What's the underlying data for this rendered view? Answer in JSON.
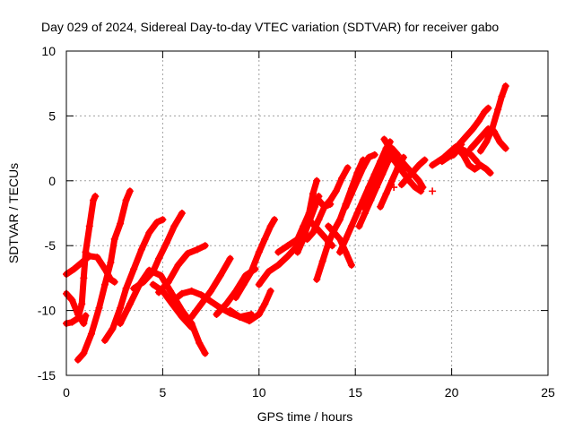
{
  "chart_data": {
    "type": "scatter",
    "title": "Day 029 of 2024, Sidereal Day-to-day VTEC variation (SDTVAR) for receiver gabo",
    "xlabel": "GPS time / hours",
    "ylabel": "SDTVAR / TECUs",
    "xlim": [
      0,
      25
    ],
    "ylim": [
      -15,
      10
    ],
    "x_ticks": [
      0,
      5,
      10,
      15,
      20,
      25
    ],
    "y_ticks": [
      -15,
      -10,
      -5,
      0,
      5,
      10
    ],
    "grid": true,
    "marker": "+",
    "color": "#ff0000",
    "legend": "none",
    "series": [
      {
        "points": [
          [
            0.0,
            -8.7
          ],
          [
            0.3,
            -9.2
          ],
          [
            0.6,
            -10.3
          ],
          [
            0.9,
            -11.0
          ],
          [
            1.0,
            -10.4
          ]
        ]
      },
      {
        "points": [
          [
            0.0,
            -7.2
          ],
          [
            0.4,
            -6.8
          ],
          [
            0.8,
            -6.3
          ],
          [
            1.2,
            -5.8
          ],
          [
            1.6,
            -5.9
          ],
          [
            2.0,
            -6.8
          ],
          [
            2.3,
            -7.6
          ],
          [
            2.5,
            -7.8
          ]
        ]
      },
      {
        "points": [
          [
            0.0,
            -11.0
          ],
          [
            0.3,
            -10.9
          ],
          [
            0.6,
            -10.6
          ],
          [
            0.8,
            -9.5
          ],
          [
            0.9,
            -7.5
          ],
          [
            1.0,
            -5.5
          ],
          [
            1.2,
            -3.5
          ],
          [
            1.4,
            -1.5
          ],
          [
            1.5,
            -1.2
          ]
        ]
      },
      {
        "points": [
          [
            0.6,
            -13.8
          ],
          [
            0.9,
            -13.3
          ],
          [
            1.3,
            -11.8
          ],
          [
            1.7,
            -9.8
          ],
          [
            2.0,
            -8.0
          ],
          [
            2.3,
            -6.3
          ],
          [
            2.5,
            -4.5
          ],
          [
            2.8,
            -3.3
          ],
          [
            3.1,
            -1.5
          ],
          [
            3.3,
            -0.8
          ]
        ]
      },
      {
        "points": [
          [
            2.0,
            -12.3
          ],
          [
            2.4,
            -11.4
          ],
          [
            2.8,
            -9.8
          ],
          [
            3.1,
            -8.3
          ],
          [
            3.5,
            -6.8
          ],
          [
            3.9,
            -5.3
          ],
          [
            4.3,
            -4.0
          ],
          [
            4.7,
            -3.2
          ],
          [
            5.0,
            -3.0
          ]
        ]
      },
      {
        "points": [
          [
            2.8,
            -11.0
          ],
          [
            3.3,
            -9.5
          ],
          [
            3.8,
            -8.0
          ],
          [
            4.3,
            -6.9
          ],
          [
            4.9,
            -7.3
          ],
          [
            5.4,
            -8.5
          ],
          [
            6.0,
            -10.0
          ],
          [
            6.5,
            -11.0
          ],
          [
            6.9,
            -12.5
          ],
          [
            7.2,
            -13.3
          ]
        ]
      },
      {
        "points": [
          [
            3.5,
            -8.3
          ],
          [
            4.0,
            -7.8
          ],
          [
            4.5,
            -7.0
          ],
          [
            4.8,
            -6.0
          ],
          [
            5.2,
            -4.8
          ],
          [
            5.6,
            -3.5
          ],
          [
            6.0,
            -2.5
          ]
        ]
      },
      {
        "points": [
          [
            4.5,
            -8.0
          ],
          [
            5.0,
            -8.5
          ],
          [
            5.5,
            -9.5
          ],
          [
            6.0,
            -10.5
          ],
          [
            6.5,
            -11.3
          ]
        ]
      },
      {
        "points": [
          [
            4.8,
            -8.6
          ],
          [
            5.3,
            -7.8
          ],
          [
            5.8,
            -6.5
          ],
          [
            6.3,
            -5.6
          ],
          [
            6.8,
            -5.3
          ],
          [
            7.2,
            -5.0
          ]
        ]
      },
      {
        "points": [
          [
            5.5,
            -9.3
          ],
          [
            6.0,
            -8.7
          ],
          [
            6.5,
            -8.5
          ],
          [
            7.0,
            -8.8
          ],
          [
            7.5,
            -9.3
          ],
          [
            8.0,
            -9.8
          ],
          [
            8.5,
            -10.2
          ],
          [
            9.0,
            -10.5
          ],
          [
            9.6,
            -10.3
          ]
        ]
      },
      {
        "points": [
          [
            6.5,
            -10.5
          ],
          [
            7.0,
            -9.5
          ],
          [
            7.5,
            -8.5
          ],
          [
            8.0,
            -7.3
          ],
          [
            8.5,
            -6.0
          ]
        ]
      },
      {
        "points": [
          [
            7.8,
            -10.3
          ],
          [
            8.3,
            -9.5
          ],
          [
            8.8,
            -8.5
          ],
          [
            9.3,
            -7.3
          ],
          [
            9.8,
            -6.8
          ]
        ]
      },
      {
        "points": [
          [
            8.5,
            -10.0
          ],
          [
            9.0,
            -10.5
          ],
          [
            9.5,
            -10.8
          ],
          [
            10.0,
            -10.3
          ],
          [
            10.3,
            -9.5
          ],
          [
            10.6,
            -8.5
          ]
        ]
      },
      {
        "points": [
          [
            8.8,
            -9.0
          ],
          [
            9.2,
            -8.0
          ],
          [
            9.6,
            -7.0
          ],
          [
            10.0,
            -5.5
          ],
          [
            10.3,
            -4.5
          ],
          [
            10.6,
            -3.5
          ],
          [
            10.8,
            -3.0
          ]
        ]
      },
      {
        "points": [
          [
            10.0,
            -8.0
          ],
          [
            10.5,
            -7.0
          ],
          [
            11.0,
            -6.5
          ],
          [
            11.5,
            -5.8
          ],
          [
            12.0,
            -5.0
          ],
          [
            12.3,
            -4.3
          ],
          [
            12.6,
            -3.2
          ],
          [
            12.9,
            -2.0
          ],
          [
            13.1,
            -1.2
          ]
        ]
      },
      {
        "points": [
          [
            11.0,
            -5.5
          ],
          [
            11.5,
            -5.0
          ],
          [
            12.0,
            -4.5
          ],
          [
            12.3,
            -3.5
          ],
          [
            12.6,
            -2.5
          ],
          [
            12.8,
            -1.0
          ],
          [
            13.0,
            0.0
          ]
        ]
      },
      {
        "points": [
          [
            12.0,
            -5.5
          ],
          [
            12.3,
            -4.5
          ],
          [
            12.6,
            -3.0
          ],
          [
            12.8,
            -2.0
          ],
          [
            13.1,
            -1.5
          ],
          [
            13.4,
            -2.0
          ],
          [
            13.7,
            -1.8
          ]
        ]
      },
      {
        "points": [
          [
            12.5,
            -4.5
          ],
          [
            12.8,
            -4.0
          ],
          [
            13.1,
            -3.0
          ],
          [
            13.4,
            -2.0
          ],
          [
            13.7,
            -1.5
          ],
          [
            14.0,
            -0.8
          ],
          [
            14.3,
            0.2
          ],
          [
            14.6,
            1.0
          ]
        ]
      },
      {
        "points": [
          [
            13.0,
            -7.6
          ],
          [
            13.3,
            -6.2
          ],
          [
            13.6,
            -4.8
          ],
          [
            13.9,
            -3.8
          ],
          [
            14.2,
            -3.0
          ],
          [
            14.5,
            -1.8
          ],
          [
            14.8,
            -0.6
          ],
          [
            15.1,
            0.6
          ],
          [
            15.4,
            1.6
          ]
        ]
      },
      {
        "points": [
          [
            12.6,
            -3.0
          ],
          [
            12.9,
            -3.5
          ],
          [
            13.2,
            -4.0
          ],
          [
            13.5,
            -4.5
          ],
          [
            13.8,
            -5.0
          ]
        ]
      },
      {
        "points": [
          [
            13.6,
            -3.5
          ],
          [
            13.9,
            -4.0
          ],
          [
            14.2,
            -4.5
          ],
          [
            14.5,
            -5.5
          ],
          [
            14.8,
            -6.5
          ]
        ]
      },
      {
        "points": [
          [
            14.2,
            -5.5
          ],
          [
            14.5,
            -4.5
          ],
          [
            14.8,
            -3.5
          ],
          [
            15.1,
            -2.5
          ],
          [
            15.4,
            -1.5
          ],
          [
            15.7,
            -0.5
          ],
          [
            16.0,
            0.5
          ],
          [
            16.3,
            1.5
          ],
          [
            16.6,
            2.5
          ],
          [
            16.8,
            3.0
          ]
        ]
      },
      {
        "points": [
          [
            14.5,
            -2.0
          ],
          [
            14.8,
            -1.0
          ],
          [
            15.1,
            0.0
          ],
          [
            15.4,
            1.0
          ],
          [
            15.7,
            1.8
          ],
          [
            16.0,
            2.0
          ]
        ]
      },
      {
        "points": [
          [
            15.2,
            -3.5
          ],
          [
            15.5,
            -2.5
          ],
          [
            15.8,
            -1.5
          ],
          [
            16.1,
            -0.5
          ],
          [
            16.4,
            0.5
          ],
          [
            16.7,
            1.5
          ],
          [
            17.0,
            2.0
          ]
        ]
      },
      {
        "points": [
          [
            15.4,
            -2.0
          ],
          [
            15.7,
            -1.5
          ],
          [
            16.0,
            -0.5
          ],
          [
            16.3,
            0.5
          ],
          [
            16.6,
            1.5
          ],
          [
            16.9,
            2.5
          ],
          [
            17.2,
            2.0
          ]
        ]
      },
      {
        "points": [
          [
            15.8,
            -1.0
          ],
          [
            16.1,
            0.0
          ],
          [
            16.4,
            0.8
          ],
          [
            16.7,
            1.6
          ]
        ]
      },
      {
        "points": [
          [
            16.3,
            -2.0
          ],
          [
            16.6,
            -1.0
          ],
          [
            16.9,
            0.0
          ],
          [
            17.2,
            1.0
          ],
          [
            17.5,
            1.8
          ]
        ]
      },
      {
        "points": [
          [
            16.5,
            3.2
          ],
          [
            16.8,
            2.5
          ],
          [
            17.1,
            1.8
          ],
          [
            17.4,
            1.5
          ],
          [
            17.7,
            1.0
          ],
          [
            18.0,
            0.5
          ],
          [
            18.3,
            0.0
          ],
          [
            18.5,
            -0.5
          ]
        ]
      },
      {
        "points": [
          [
            16.9,
            1.8
          ],
          [
            17.2,
            1.2
          ],
          [
            17.5,
            0.6
          ],
          [
            17.8,
            0.0
          ],
          [
            18.1,
            -0.5
          ],
          [
            18.4,
            -0.8
          ]
        ]
      },
      {
        "points": [
          [
            17.4,
            -0.3
          ],
          [
            17.7,
            0.2
          ],
          [
            18.0,
            0.7
          ],
          [
            18.3,
            1.2
          ],
          [
            18.6,
            1.6
          ]
        ]
      },
      {
        "points": [
          [
            17.5,
            0.8
          ]
        ]
      },
      {
        "points": [
          [
            17.0,
            -0.5
          ]
        ]
      },
      {
        "points": [
          [
            19.0,
            -0.8
          ]
        ]
      },
      {
        "points": [
          [
            19.0,
            1.2
          ],
          [
            19.3,
            1.5
          ],
          [
            19.6,
            1.8
          ],
          [
            19.9,
            2.2
          ],
          [
            20.2,
            2.6
          ],
          [
            20.5,
            2.8
          ]
        ]
      },
      {
        "points": [
          [
            19.5,
            1.5
          ],
          [
            19.8,
            1.8
          ],
          [
            20.1,
            2.0
          ],
          [
            20.4,
            2.5
          ],
          [
            20.7,
            2.3
          ],
          [
            21.0,
            2.0
          ],
          [
            21.3,
            1.5
          ]
        ]
      },
      {
        "points": [
          [
            20.0,
            2.0
          ],
          [
            20.3,
            2.5
          ],
          [
            20.6,
            2.0
          ],
          [
            20.9,
            1.2
          ],
          [
            21.2,
            0.9
          ],
          [
            21.5,
            1.2
          ],
          [
            21.8,
            0.9
          ],
          [
            22.0,
            0.6
          ]
        ]
      },
      {
        "points": [
          [
            20.2,
            2.5
          ],
          [
            20.5,
            3.0
          ],
          [
            20.8,
            3.5
          ],
          [
            21.1,
            4.0
          ],
          [
            21.4,
            4.6
          ],
          [
            21.7,
            5.3
          ],
          [
            21.9,
            5.6
          ]
        ]
      },
      {
        "points": [
          [
            21.0,
            2.5
          ],
          [
            21.3,
            3.0
          ],
          [
            21.6,
            3.5
          ],
          [
            21.9,
            4.0
          ],
          [
            22.2,
            3.8
          ],
          [
            22.5,
            3.0
          ],
          [
            22.8,
            2.5
          ]
        ]
      },
      {
        "points": [
          [
            21.5,
            2.3
          ],
          [
            21.8,
            3.0
          ],
          [
            22.1,
            4.0
          ],
          [
            22.4,
            5.5
          ],
          [
            22.6,
            6.5
          ],
          [
            22.8,
            7.3
          ]
        ]
      }
    ]
  }
}
